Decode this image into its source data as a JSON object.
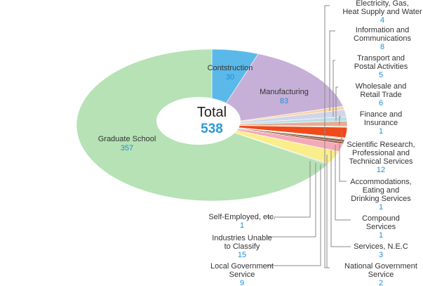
{
  "chart_data": {
    "type": "pie",
    "center_label": "Total",
    "total": 538,
    "slices": [
      {
        "label": "Contstruction",
        "value": 30,
        "color": "#5bb9e9"
      },
      {
        "label": "Manufacturing",
        "value": 83,
        "color": "#c6b0d8"
      },
      {
        "label": "Electricity, Gas, Heat Supply and Water",
        "value": 4,
        "color": "#f9d6a4"
      },
      {
        "label": "Information and Communications",
        "value": 8,
        "color": "#d2d5e9"
      },
      {
        "label": "Transport and Postal Activities",
        "value": 5,
        "color": "#b7dfe7"
      },
      {
        "label": "Wholesale and Retail Trade",
        "value": 6,
        "color": "#e8ab93"
      },
      {
        "label": "Finance and Insurance",
        "value": 1,
        "color": "#e4ddb8"
      },
      {
        "label": "Scientific Research, Professional and Technical Services",
        "value": 12,
        "color": "#ef4a1a"
      },
      {
        "label": "Accommodations, Eating and Drinking Services",
        "value": 1,
        "color": "#c6b7a2"
      },
      {
        "label": "Compound Services",
        "value": 1,
        "color": "#cfc8a9"
      },
      {
        "label": "Services, N.E.C",
        "value": 3,
        "color": "#8b6c5a"
      },
      {
        "label": "National Government Service",
        "value": 2,
        "color": "#9d3f2c"
      },
      {
        "label": "Local Government Service",
        "value": 9,
        "color": "#f4a9b6"
      },
      {
        "label": "Industries Unable to Classify",
        "value": 15,
        "color": "#faee8c"
      },
      {
        "label": "Self-Employed, etc.",
        "value": 1,
        "color": "#c9c9d7"
      },
      {
        "label": "Graduate School",
        "value": 357,
        "color": "#b6e2b5"
      }
    ]
  },
  "labels": {
    "total": "Total",
    "total_value": "538",
    "construction": {
      "name": "Contstruction",
      "value": "30"
    },
    "manufacturing": {
      "name": "Manufacturing",
      "value": "83"
    },
    "graduate": {
      "name": "Graduate School",
      "value": "357"
    },
    "electricity": {
      "line1": "Electricity, Gas,",
      "line2": "Heat Supply and Water",
      "value": "4"
    },
    "information": {
      "line1": "Information and",
      "line2": "Communications",
      "value": "8"
    },
    "transport": {
      "line1": "Transport and",
      "line2": "Postal Activities",
      "value": "5"
    },
    "wholesale": {
      "line1": "Wholesale and",
      "line2": "Retail Trade",
      "value": "6"
    },
    "finance": {
      "line1": "Finance and",
      "line2": "Insurance",
      "value": "1"
    },
    "scientific": {
      "line1": "Scientific Research,",
      "line2": "Professional and",
      "line3": "Technical Services",
      "value": "12"
    },
    "accommodations": {
      "line1": "Accommodations,",
      "line2": "Eating and",
      "line3": "Drinking Services",
      "value": "1"
    },
    "compound": {
      "line1": "Compound",
      "line2": "Services",
      "value": "1"
    },
    "services_nec": {
      "line1": "Services, N.E.C",
      "value": "3"
    },
    "national_gov": {
      "line1": "National Government",
      "line2": "Service",
      "value": "2"
    },
    "self_employed": {
      "line1": "Self-Employed, etc.",
      "value": "1"
    },
    "unclassified": {
      "line1": "Industries Unable",
      "line2": "to Classify",
      "value": "15"
    },
    "local_gov": {
      "line1": "Local Government",
      "line2": "Service",
      "value": "9"
    }
  },
  "colors": {
    "label_text": "#333333",
    "value_text": "#1f8fd6",
    "leader_line": "#8a8a8a",
    "center_total": "#2a98d8"
  }
}
